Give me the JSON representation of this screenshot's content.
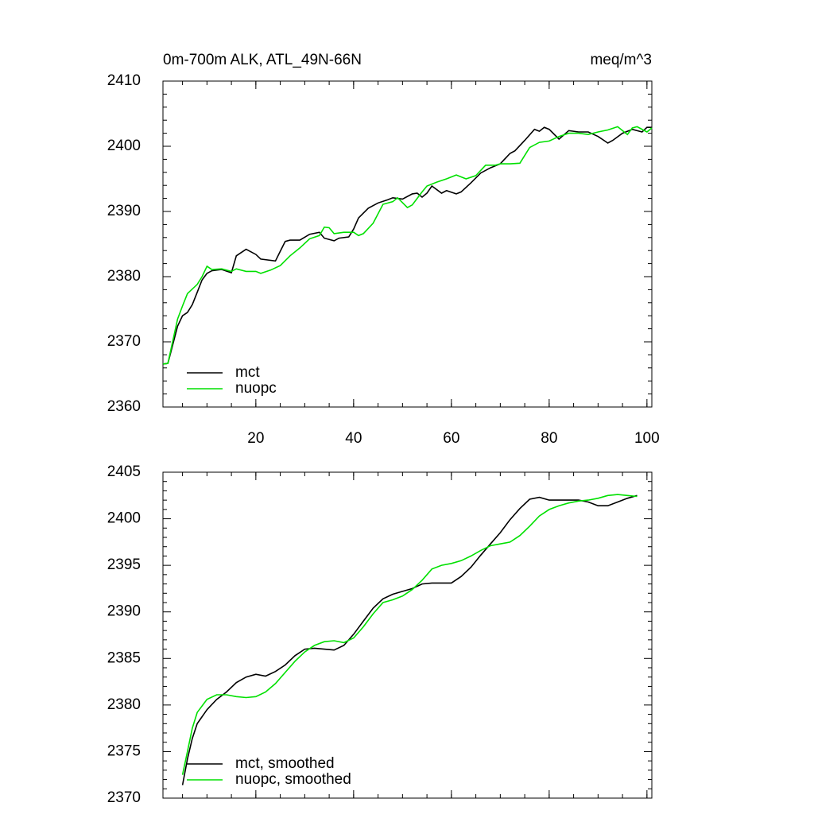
{
  "chart_data": [
    {
      "type": "line",
      "title": "0m-700m ALK, ATL_49N-66N",
      "units": "meq/m^3",
      "xlim": [
        1,
        101
      ],
      "xticks": [
        20,
        40,
        60,
        80,
        100
      ],
      "xtick_labels": true,
      "ylim": [
        2360,
        2410
      ],
      "yticks": [
        2360,
        2370,
        2380,
        2390,
        2400,
        2410
      ],
      "series": [
        {
          "name": "mct",
          "color": "#000000",
          "x": [
            1,
            2,
            4,
            5,
            6,
            7,
            8,
            9,
            10,
            11,
            13,
            15,
            16,
            18,
            20,
            21,
            24,
            25,
            26,
            27,
            29,
            31,
            33,
            34,
            36,
            37,
            39,
            40,
            41,
            43,
            45,
            47,
            48,
            50,
            52,
            53,
            54,
            55,
            56,
            58,
            59,
            61,
            62,
            64,
            66,
            68,
            70,
            72,
            73,
            75,
            77,
            78,
            79,
            80,
            82,
            84,
            86,
            88,
            90,
            92,
            93,
            95,
            97,
            99,
            100,
            101
          ],
          "values": [
            2366.6,
            2366.7,
            2372.4,
            2374.0,
            2374.5,
            2375.7,
            2377.6,
            2379.5,
            2380.5,
            2380.9,
            2381.1,
            2380.6,
            2383.2,
            2384.2,
            2383.4,
            2382.7,
            2382.4,
            2383.9,
            2385.4,
            2385.6,
            2385.6,
            2386.5,
            2386.8,
            2385.9,
            2385.5,
            2385.9,
            2386.1,
            2387.3,
            2389.0,
            2390.5,
            2391.3,
            2391.8,
            2392.1,
            2391.9,
            2392.7,
            2392.8,
            2392.2,
            2392.8,
            2393.9,
            2392.8,
            2393.2,
            2392.7,
            2393.0,
            2394.4,
            2395.9,
            2396.7,
            2397.3,
            2398.9,
            2399.3,
            2400.9,
            2402.6,
            2402.3,
            2402.9,
            2402.6,
            2401.1,
            2402.4,
            2402.2,
            2402.2,
            2401.5,
            2400.5,
            2400.9,
            2402.0,
            2402.6,
            2402.2,
            2402.9,
            2402.9
          ]
        },
        {
          "name": "nuopc",
          "color": "#00e000",
          "x": [
            1,
            2,
            4,
            5,
            6,
            8,
            9,
            10,
            11,
            13,
            15,
            16,
            18,
            20,
            21,
            23,
            25,
            27,
            29,
            31,
            33,
            34,
            35,
            36,
            38,
            40,
            41,
            42,
            44,
            46,
            48,
            49,
            51,
            52,
            54,
            55,
            57,
            59,
            61,
            63,
            65,
            67,
            69,
            70,
            72,
            74,
            76,
            78,
            80,
            82,
            84,
            86,
            88,
            90,
            92,
            94,
            96,
            97,
            98,
            100,
            101
          ],
          "values": [
            2366.6,
            2366.7,
            2373.5,
            2375.5,
            2377.4,
            2378.8,
            2380.0,
            2381.6,
            2381.1,
            2381.2,
            2380.8,
            2381.2,
            2380.8,
            2380.8,
            2380.5,
            2381.0,
            2381.7,
            2383.2,
            2384.4,
            2385.8,
            2386.3,
            2387.6,
            2387.5,
            2386.6,
            2386.8,
            2386.8,
            2386.3,
            2386.6,
            2388.2,
            2391.1,
            2391.5,
            2392.1,
            2390.6,
            2391.0,
            2393.0,
            2393.9,
            2394.5,
            2395.0,
            2395.6,
            2395.0,
            2395.5,
            2397.1,
            2397.1,
            2397.3,
            2397.3,
            2397.4,
            2399.8,
            2400.6,
            2400.8,
            2401.5,
            2402.0,
            2402.0,
            2401.8,
            2402.2,
            2402.5,
            2403.0,
            2401.8,
            2402.8,
            2403.0,
            2402.2,
            2402.8
          ]
        }
      ]
    },
    {
      "type": "line",
      "xlim": [
        1,
        101
      ],
      "xticks": [
        20,
        40,
        60,
        80,
        100
      ],
      "xtick_labels": false,
      "ylim": [
        2370,
        2405
      ],
      "yticks": [
        2370,
        2375,
        2380,
        2385,
        2390,
        2395,
        2400,
        2405
      ],
      "series": [
        {
          "name": "mct, smoothed",
          "color": "#000000",
          "x": [
            5,
            6,
            7,
            8,
            10,
            12,
            14,
            16,
            18,
            20,
            22,
            24,
            26,
            28,
            30,
            32,
            34,
            36,
            38,
            40,
            42,
            44,
            46,
            48,
            50,
            52,
            54,
            56,
            58,
            60,
            62,
            64,
            66,
            68,
            70,
            72,
            74,
            76,
            78,
            80,
            82,
            84,
            86,
            88,
            90,
            92,
            94,
            96,
            98
          ],
          "values": [
            2371.4,
            2374.2,
            2376.4,
            2378.0,
            2379.5,
            2380.6,
            2381.4,
            2382.4,
            2383.0,
            2383.3,
            2383.1,
            2383.6,
            2384.3,
            2385.3,
            2386.0,
            2386.1,
            2386.0,
            2385.9,
            2386.4,
            2387.6,
            2389.0,
            2390.4,
            2391.4,
            2391.9,
            2392.2,
            2392.5,
            2393.0,
            2393.1,
            2393.1,
            2393.1,
            2393.8,
            2394.8,
            2396.1,
            2397.3,
            2398.5,
            2399.9,
            2401.1,
            2402.1,
            2402.3,
            2402.0,
            2402.0,
            2402.0,
            2402.0,
            2401.8,
            2401.4,
            2401.4,
            2401.8,
            2402.2,
            2402.5
          ]
        },
        {
          "name": "nuopc, smoothed",
          "color": "#00e000",
          "x": [
            5,
            6,
            7,
            8,
            10,
            12,
            14,
            16,
            18,
            20,
            22,
            24,
            26,
            28,
            30,
            32,
            34,
            36,
            38,
            40,
            42,
            44,
            46,
            48,
            50,
            52,
            54,
            56,
            58,
            60,
            62,
            64,
            66,
            68,
            70,
            72,
            74,
            76,
            78,
            80,
            82,
            84,
            86,
            88,
            90,
            92,
            94,
            96,
            98
          ],
          "values": [
            2372.5,
            2375.0,
            2377.5,
            2379.2,
            2380.6,
            2381.1,
            2381.1,
            2380.9,
            2380.8,
            2380.9,
            2381.4,
            2382.3,
            2383.5,
            2384.7,
            2385.7,
            2386.4,
            2386.8,
            2386.9,
            2386.7,
            2387.2,
            2388.4,
            2389.8,
            2391.0,
            2391.3,
            2391.7,
            2392.4,
            2393.4,
            2394.6,
            2395.0,
            2395.2,
            2395.5,
            2396.0,
            2396.6,
            2397.1,
            2397.3,
            2397.5,
            2398.2,
            2399.2,
            2400.3,
            2401.0,
            2401.4,
            2401.7,
            2401.9,
            2402.0,
            2402.2,
            2402.5,
            2402.6,
            2402.5,
            2402.4
          ]
        }
      ]
    }
  ]
}
